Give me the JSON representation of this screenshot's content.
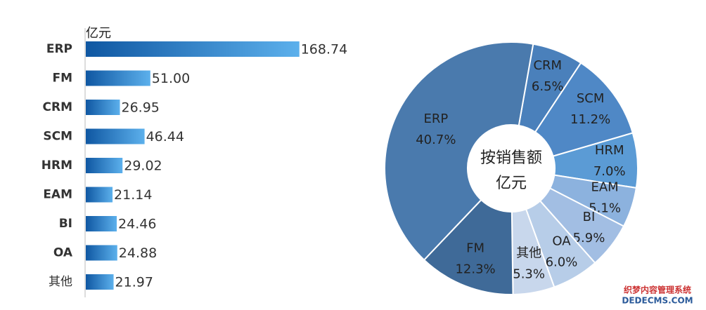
{
  "chart_data": [
    {
      "type": "hbar",
      "unit_label": "亿元",
      "categories": [
        "ERP",
        "FM",
        "CRM",
        "SCM",
        "HRM",
        "EAM",
        "BI",
        "OA",
        "其他"
      ],
      "values": [
        168.74,
        51,
        26.95,
        46.44,
        29.02,
        21.14,
        24.46,
        24.88,
        21.97
      ],
      "value_labels": [
        "168.74",
        "51.00",
        "26.95",
        "46.44",
        "29.02",
        "21.14",
        "24.46",
        "24.88",
        "21.97"
      ],
      "xlim": [
        0,
        200
      ],
      "colors": [
        "#0f57a2",
        "#5cb0ec"
      ]
    },
    {
      "type": "donut",
      "center_text": [
        "按销售额",
        "亿元"
      ],
      "categories": [
        "CRM",
        "SCM",
        "HRM",
        "EAM",
        "BI",
        "OA",
        "其他",
        "FM",
        "ERP"
      ],
      "values": [
        6.5,
        11.2,
        7,
        5.1,
        5.9,
        6,
        5.3,
        12.3,
        40.7
      ],
      "value_labels": [
        "6.5%",
        "11.2%",
        "7.0%",
        "5.1%",
        "5.9%",
        "6.0%",
        "5.3%",
        "12.3%",
        "40.7%"
      ],
      "colors": [
        "#4a80bb",
        "#4f88c6",
        "#5b9bd5",
        "#8cb2de",
        "#a2bee3",
        "#b7cde8",
        "#c8d7ec",
        "#3f6a98",
        "#4a7aad"
      ]
    }
  ],
  "watermark": [
    "织梦内容管理系统",
    "DEDECMS.COM"
  ]
}
